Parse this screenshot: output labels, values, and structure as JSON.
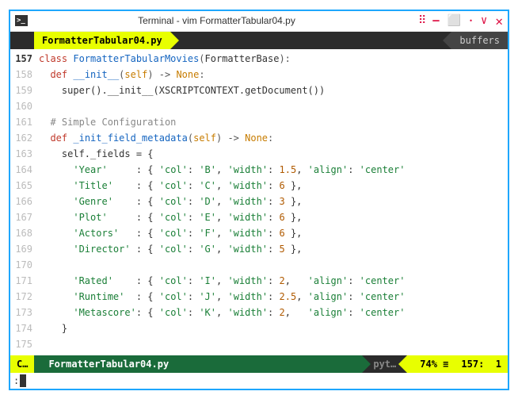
{
  "window": {
    "title": "Terminal - vim FormatterTabular04.py"
  },
  "tabs": {
    "active": "FormatterTabular04.py",
    "right": "buffers"
  },
  "status": {
    "mode": "C…",
    "file": "FormatterTabular04.py",
    "filetype": "pyt…",
    "percent": "74% ≡",
    "line": "157",
    "col": "1"
  },
  "cmd": {
    "prefix": ":"
  },
  "gutter": {
    "start": 157,
    "count": 19,
    "current": 157
  },
  "code": {
    "line157": {
      "kw1": "class",
      "cls": " FormatterTabularMovies",
      "p1": "(",
      "base": "FormatterBase",
      "p2": "):"
    },
    "line158": {
      "ind": "  ",
      "kw": "def",
      "fn": " __init__",
      "p1": "(",
      "self": "self",
      "p2": ") -> ",
      "ret": "None",
      "p3": ":"
    },
    "line159": {
      "txt": "    super().__init__(XSCRIPTCONTEXT.getDocument())"
    },
    "line160": {
      "txt": ""
    },
    "line161": {
      "ind": "  ",
      "cmt": "# Simple Configuration"
    },
    "line162": {
      "ind": "  ",
      "kw": "def",
      "fn": " _init_field_metadata",
      "p1": "(",
      "self": "self",
      "p2": ") -> ",
      "ret": "None",
      "p3": ":"
    },
    "line163": {
      "txt": "    self._fields = {"
    },
    "line164": {
      "pre": "      ",
      "key": "'Year'",
      "pad": "     : { ",
      "c": "'col'",
      "cp": ": ",
      "cv": "'B'",
      "s1": ", ",
      "w": "'width'",
      "wp": ": ",
      "wv": "1.5",
      "s2": ", ",
      "a": "'align'",
      "ap": ": ",
      "av": "'center'"
    },
    "line165": {
      "pre": "      ",
      "key": "'Title'",
      "pad": "    : { ",
      "c": "'col'",
      "cp": ": ",
      "cv": "'C'",
      "s1": ", ",
      "w": "'width'",
      "wp": ": ",
      "wv": "6",
      "tail": " },"
    },
    "line166": {
      "pre": "      ",
      "key": "'Genre'",
      "pad": "    : { ",
      "c": "'col'",
      "cp": ": ",
      "cv": "'D'",
      "s1": ", ",
      "w": "'width'",
      "wp": ": ",
      "wv": "3",
      "tail": " },"
    },
    "line167": {
      "pre": "      ",
      "key": "'Plot'",
      "pad": "     : { ",
      "c": "'col'",
      "cp": ": ",
      "cv": "'E'",
      "s1": ", ",
      "w": "'width'",
      "wp": ": ",
      "wv": "6",
      "tail": " },"
    },
    "line168": {
      "pre": "      ",
      "key": "'Actors'",
      "pad": "   : { ",
      "c": "'col'",
      "cp": ": ",
      "cv": "'F'",
      "s1": ", ",
      "w": "'width'",
      "wp": ": ",
      "wv": "6",
      "tail": " },"
    },
    "line169": {
      "pre": "      ",
      "key": "'Director'",
      "pad": " : { ",
      "c": "'col'",
      "cp": ": ",
      "cv": "'G'",
      "s1": ", ",
      "w": "'width'",
      "wp": ": ",
      "wv": "5",
      "tail": " },"
    },
    "line170": {
      "txt": ""
    },
    "line171": {
      "pre": "      ",
      "key": "'Rated'",
      "pad": "    : { ",
      "c": "'col'",
      "cp": ": ",
      "cv": "'I'",
      "s1": ", ",
      "w": "'width'",
      "wp": ": ",
      "wv": "2",
      "s2": ",   ",
      "a": "'align'",
      "ap": ": ",
      "av": "'center'"
    },
    "line172": {
      "pre": "      ",
      "key": "'Runtime'",
      "pad": "  : { ",
      "c": "'col'",
      "cp": ": ",
      "cv": "'J'",
      "s1": ", ",
      "w": "'width'",
      "wp": ": ",
      "wv": "2.5",
      "s2": ", ",
      "a": "'align'",
      "ap": ": ",
      "av": "'center'"
    },
    "line173": {
      "pre": "      ",
      "key": "'Metascore'",
      "pad": ": { ",
      "c": "'col'",
      "cp": ": ",
      "cv": "'K'",
      "s1": ", ",
      "w": "'width'",
      "wp": ": ",
      "wv": "2",
      "s2": ",   ",
      "a": "'align'",
      "ap": ": ",
      "av": "'center'"
    },
    "line174": {
      "txt": "    }"
    },
    "line175": {
      "txt": ""
    }
  }
}
